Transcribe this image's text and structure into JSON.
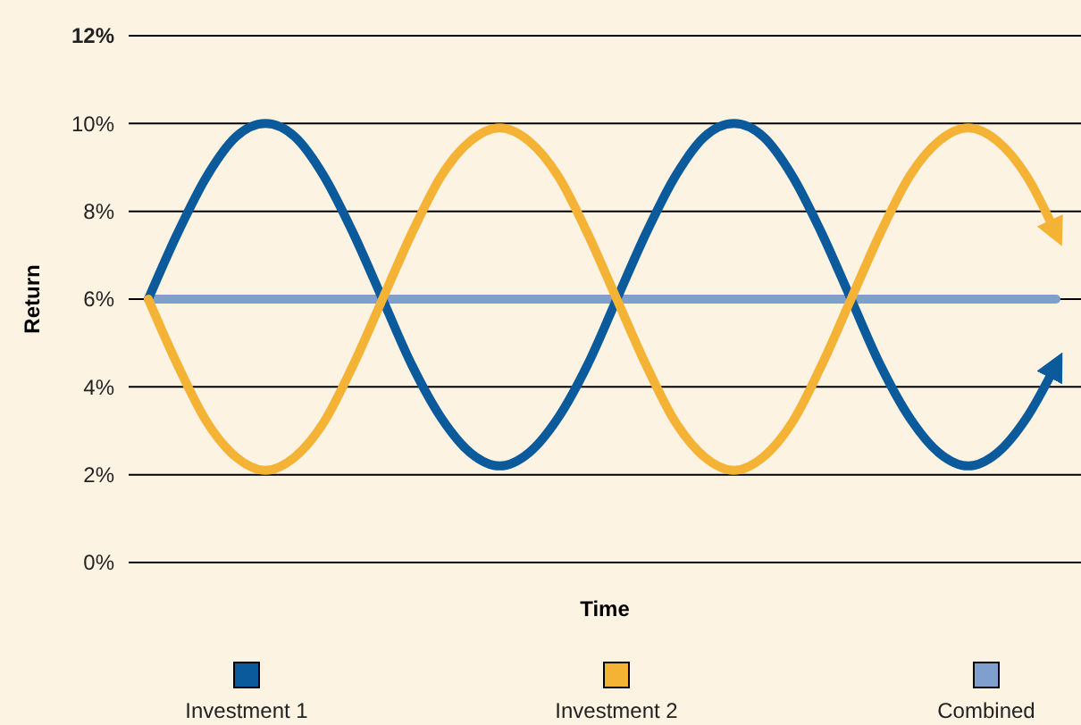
{
  "chart_data": {
    "type": "line",
    "xlabel": "Time",
    "ylabel": "Return",
    "categories": [
      null,
      null,
      null,
      null,
      null,
      null,
      null,
      null,
      null,
      null,
      null,
      null,
      null,
      null,
      null,
      null,
      null,
      null,
      null,
      null,
      null,
      null,
      null,
      null,
      null,
      null,
      null,
      null,
      null,
      null,
      null,
      null
    ],
    "series": [
      {
        "name": "Investment 1",
        "color": "#0a5a9c",
        "values": [
          6,
          7.5,
          8.8,
          9.7,
          10,
          9.7,
          8.8,
          7.5,
          6,
          4.5,
          3.3,
          2.5,
          2.2,
          2.5,
          3.3,
          4.5,
          6,
          7.5,
          8.8,
          9.7,
          10,
          9.7,
          8.8,
          7.5,
          6,
          4.5,
          3.3,
          2.5,
          2.2,
          2.5,
          3.3,
          4.5
        ]
      },
      {
        "name": "Investment 2",
        "color": "#f5b335",
        "values": [
          6,
          4.5,
          3.2,
          2.4,
          2.1,
          2.4,
          3.2,
          4.5,
          6,
          7.5,
          8.8,
          9.6,
          9.9,
          9.6,
          8.8,
          7.5,
          6,
          4.5,
          3.2,
          2.4,
          2.1,
          2.4,
          3.2,
          4.5,
          6,
          7.5,
          8.8,
          9.6,
          9.9,
          9.6,
          8.8,
          7.5
        ]
      },
      {
        "name": "Combined",
        "color": "#7f9fcf",
        "values": [
          6,
          6,
          6,
          6,
          6,
          6,
          6,
          6,
          6,
          6,
          6,
          6,
          6,
          6,
          6,
          6,
          6,
          6,
          6,
          6,
          6,
          6,
          6,
          6,
          6,
          6,
          6,
          6,
          6,
          6,
          6,
          6
        ]
      }
    ],
    "ylim": [
      0,
      12
    ],
    "yticks": [
      {
        "value": 0,
        "label": "0%"
      },
      {
        "value": 2,
        "label": "2%"
      },
      {
        "value": 4,
        "label": "4%"
      },
      {
        "value": 6,
        "label": "6%"
      },
      {
        "value": 8,
        "label": "8%"
      },
      {
        "value": 10,
        "label": "10%"
      },
      {
        "value": 12,
        "label": "12%"
      }
    ],
    "grid": "y",
    "legend": "bottom",
    "tick_labels": "y",
    "marker": "none",
    "line_style": "solid"
  }
}
